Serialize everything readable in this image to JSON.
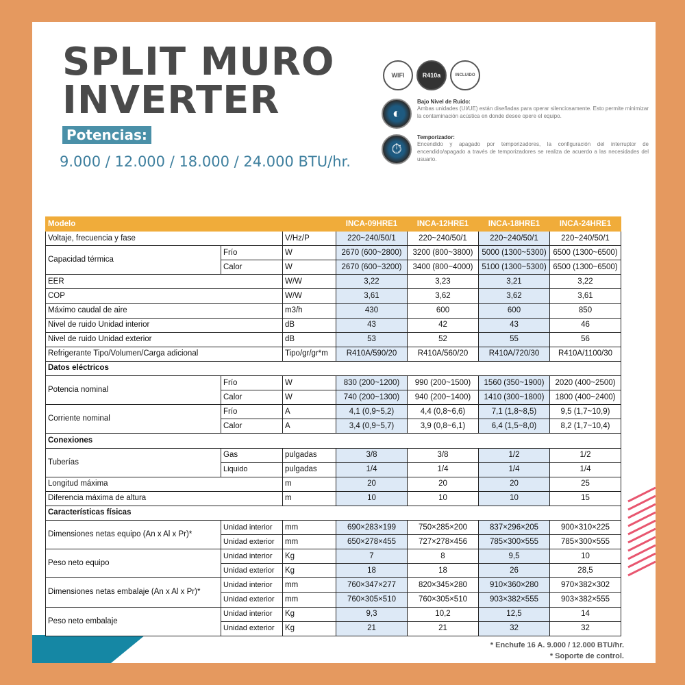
{
  "title": {
    "line1": "SPLIT MURO",
    "line2": "INVERTER"
  },
  "potencias_label": "Potencias:",
  "btu_line": "9.000 / 12.000 / 18.000 / 24.000 BTU/hr.",
  "badges": [
    {
      "icon": "wifi-icon",
      "label": "WIFI"
    },
    {
      "icon": "refrigerant-icon",
      "label": "R410a"
    },
    {
      "icon": "remote-control-icon",
      "label": "INCLUIDO"
    }
  ],
  "features": [
    {
      "icon": "low-noise-icon",
      "title": "Bajo Nivel de Ruido:",
      "text": "Ambas unidades (UI/UE) están diseñadas para operar silenciosamente. Esto permite minimizar la contaminación acústica en donde desee opere el equipo."
    },
    {
      "icon": "timer-icon",
      "title": "Temporizador:",
      "text": "Encendido y apagado por temporizadores, la configuración del interruptor de encendido/apagado a través de temporizadores se realiza de acuerdo a las necesidades del usuario."
    }
  ],
  "colors": {
    "frame": "#e5995f",
    "header": "#f0ac3a",
    "accent": "#3e7f9e",
    "teal": "#1587a4",
    "highlight": "#dde9f6"
  },
  "table": {
    "header": "Modelo",
    "models": [
      "INCA-09HRE1",
      "INCA-12HRE1",
      "INCA-18HRE1",
      "INCA-24HRE1"
    ],
    "groups": [
      {
        "label": "Voltaje, frecuencia y fase",
        "rows": [
          {
            "sub": "",
            "unit": "V/Hz/P",
            "values": [
              "220~240/50/1",
              "220~240/50/1",
              "220~240/50/1",
              "220~240/50/1"
            ]
          }
        ]
      },
      {
        "label": "Capacidad térmica",
        "rows": [
          {
            "sub": "Frío",
            "unit": "W",
            "values": [
              "2670 (600~2800)",
              "3200 (800~3800)",
              "5000 (1300~5300)",
              "6500 (1300~6500)"
            ]
          },
          {
            "sub": "Calor",
            "unit": "W",
            "values": [
              "2670 (600~3200)",
              "3400 (800~4000)",
              "5100 (1300~5300)",
              "6500 (1300~6500)"
            ]
          }
        ]
      },
      {
        "label": "EER",
        "rows": [
          {
            "sub": "",
            "unit": "W/W",
            "values": [
              "3,22",
              "3,23",
              "3,21",
              "3,22"
            ]
          }
        ]
      },
      {
        "label": "COP",
        "rows": [
          {
            "sub": "",
            "unit": "W/W",
            "values": [
              "3,61",
              "3,62",
              "3,62",
              "3,61"
            ]
          }
        ]
      },
      {
        "label": "Máximo caudal de aire",
        "rows": [
          {
            "sub": "",
            "unit": "m3/h",
            "values": [
              "430",
              "600",
              "600",
              "850"
            ]
          }
        ]
      },
      {
        "label": "Nivel de ruido Unidad interior",
        "rows": [
          {
            "sub": "",
            "unit": "dB",
            "values": [
              "43",
              "42",
              "43",
              "46"
            ]
          }
        ]
      },
      {
        "label": "Nivel de ruido Unidad exterior",
        "rows": [
          {
            "sub": "",
            "unit": "dB",
            "values": [
              "53",
              "52",
              "55",
              "56"
            ]
          }
        ]
      },
      {
        "label": "Refrigerante Tipo/Volumen/Carga adicional",
        "rows": [
          {
            "sub": "",
            "unit": "Tipo/gr/gr*m",
            "values": [
              "R410A/590/20",
              "R410A/560/20",
              "R410A/720/30",
              "R410A/1100/30"
            ]
          }
        ]
      },
      {
        "section": "Datos eléctricos"
      },
      {
        "label": "Potencia nominal",
        "rows": [
          {
            "sub": "Frío",
            "unit": "W",
            "values": [
              "830 (200~1200)",
              "990 (200~1500)",
              "1560 (350~1900)",
              "2020 (400~2500)"
            ]
          },
          {
            "sub": "Calor",
            "unit": "W",
            "values": [
              "740 (200~1300)",
              "940 (200~1400)",
              "1410 (300~1800)",
              "1800 (400~2400)"
            ]
          }
        ]
      },
      {
        "label": "Corriente nominal",
        "rows": [
          {
            "sub": "Frío",
            "unit": "A",
            "values": [
              "4,1 (0,9~5,2)",
              "4,4 (0,8~6,6)",
              "7,1 (1,8~8,5)",
              "9,5 (1,7~10,9)"
            ]
          },
          {
            "sub": "Calor",
            "unit": "A",
            "values": [
              "3,4 (0,9~5,7)",
              "3,9 (0,8~6,1)",
              "6,4 (1,5~8,0)",
              "8,2 (1,7~10,4)"
            ]
          }
        ]
      },
      {
        "section": "Conexiones"
      },
      {
        "label": "Tuberías",
        "rows": [
          {
            "sub": "Gas",
            "unit": "pulgadas",
            "values": [
              "3/8",
              "3/8",
              "1/2",
              "1/2"
            ]
          },
          {
            "sub": "Liquido",
            "unit": "pulgadas",
            "values": [
              "1/4",
              "1/4",
              "1/4",
              "1/4"
            ]
          }
        ]
      },
      {
        "label": "Longitud máxima",
        "rows": [
          {
            "sub": "",
            "unit": "m",
            "values": [
              "20",
              "20",
              "20",
              "25"
            ]
          }
        ]
      },
      {
        "label": "Diferencia máxima de altura",
        "rows": [
          {
            "sub": "",
            "unit": "m",
            "values": [
              "10",
              "10",
              "10",
              "15"
            ]
          }
        ]
      },
      {
        "section": "Características físicas"
      },
      {
        "label": "Dimensiones netas equipo (An x Al x Pr)*",
        "rows": [
          {
            "sub": "Unidad interior",
            "unit": "mm",
            "values": [
              "690×283×199",
              "750×285×200",
              "837×296×205",
              "900×310×225"
            ]
          },
          {
            "sub": "Unidad exterior",
            "unit": "mm",
            "values": [
              "650×278×455",
              "727×278×456",
              "785×300×555",
              "785×300×555"
            ]
          }
        ]
      },
      {
        "label": "Peso neto equipo",
        "rows": [
          {
            "sub": "Unidad interior",
            "unit": "Kg",
            "values": [
              "7",
              "8",
              "9,5",
              "10"
            ]
          },
          {
            "sub": "Unidad exterior",
            "unit": "Kg",
            "values": [
              "18",
              "18",
              "26",
              "28,5"
            ]
          }
        ]
      },
      {
        "label": "Dimensiones netas embalaje (An x Al x Pr)*",
        "rows": [
          {
            "sub": "Unidad interior",
            "unit": "mm",
            "values": [
              "760×347×277",
              "820×345×280",
              "910×360×280",
              "970×382×302"
            ]
          },
          {
            "sub": "Unidad exterior",
            "unit": "mm",
            "values": [
              "760×305×510",
              "760×305×510",
              "903×382×555",
              "903×382×555"
            ]
          }
        ]
      },
      {
        "label": "Peso neto embalaje",
        "rows": [
          {
            "sub": "Unidad interior",
            "unit": "Kg",
            "values": [
              "9,3",
              "10,2",
              "12,5",
              "14"
            ]
          },
          {
            "sub": "Unidad exterior",
            "unit": "Kg",
            "values": [
              "21",
              "21",
              "32",
              "32"
            ]
          }
        ]
      }
    ]
  },
  "notes": [
    "* Enchufe 16 A. 9.000 / 12.000 BTU/hr.",
    "* Soporte de control."
  ]
}
